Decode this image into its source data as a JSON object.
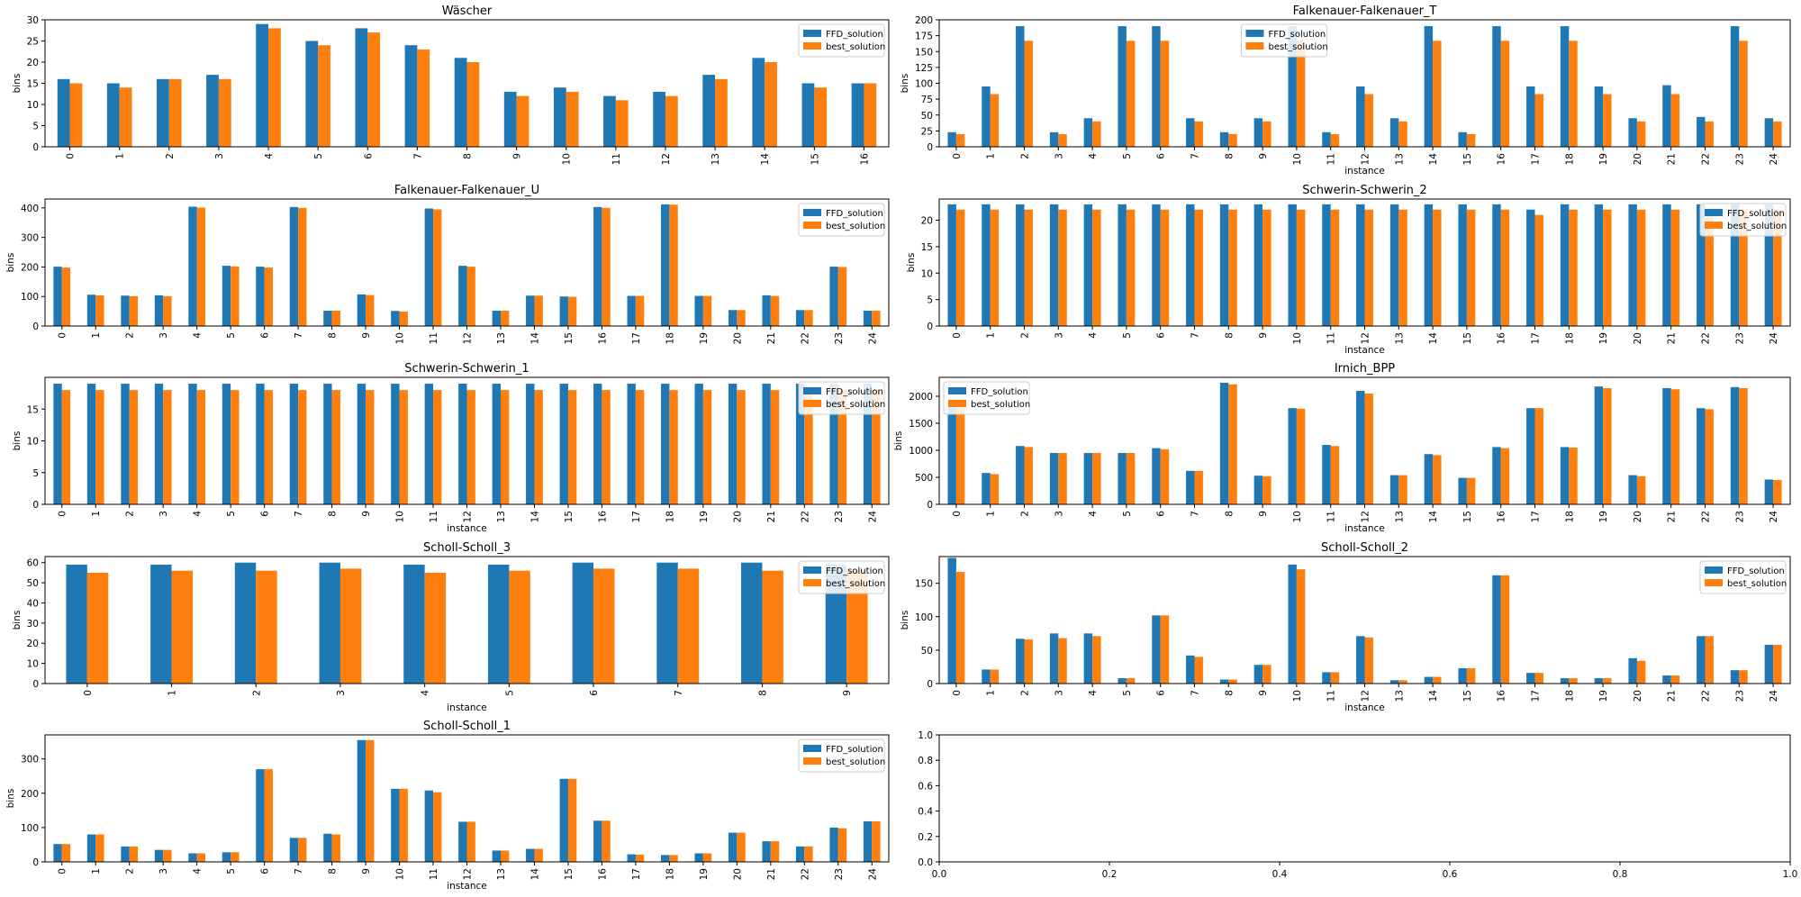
{
  "colors": {
    "ffd": "#1f77b4",
    "best": "#ff7f0e"
  },
  "chart_data": [
    {
      "type": "bar",
      "title": "Wäscher",
      "xlabel": "",
      "ylabel": "bins",
      "ylim": [
        0,
        30
      ],
      "yticks": [
        0,
        5,
        10,
        15,
        20,
        25,
        30
      ],
      "legend": "top-right",
      "categories": [
        "0",
        "1",
        "2",
        "3",
        "4",
        "5",
        "6",
        "7",
        "8",
        "9",
        "10",
        "11",
        "12",
        "13",
        "14",
        "15",
        "16"
      ],
      "series": [
        {
          "name": "FFD_solution",
          "values": [
            16,
            15,
            16,
            17,
            29,
            25,
            28,
            24,
            21,
            13,
            14,
            12,
            13,
            17,
            21,
            15,
            15
          ]
        },
        {
          "name": "best_solution",
          "values": [
            15,
            14,
            16,
            16,
            28,
            24,
            27,
            23,
            20,
            12,
            13,
            11,
            12,
            16,
            20,
            14,
            15
          ]
        }
      ]
    },
    {
      "type": "bar",
      "title": "Falkenauer-Falkenauer_T",
      "xlabel": "instance",
      "ylabel": "bins",
      "ylim": [
        0,
        200
      ],
      "yticks": [
        0,
        25,
        50,
        75,
        100,
        125,
        150,
        175,
        200
      ],
      "legend": "top-center",
      "categories": [
        "0",
        "1",
        "2",
        "3",
        "4",
        "5",
        "6",
        "7",
        "8",
        "9",
        "10",
        "11",
        "12",
        "13",
        "14",
        "15",
        "16",
        "17",
        "18",
        "19",
        "20",
        "21",
        "22",
        "23",
        "24"
      ],
      "series": [
        {
          "name": "FFD_solution",
          "values": [
            23,
            95,
            190,
            23,
            45,
            190,
            190,
            45,
            23,
            45,
            190,
            23,
            95,
            45,
            190,
            23,
            190,
            95,
            190,
            95,
            45,
            97,
            47,
            190,
            45
          ]
        },
        {
          "name": "best_solution",
          "values": [
            20,
            83,
            167,
            20,
            40,
            167,
            167,
            40,
            20,
            40,
            167,
            20,
            83,
            40,
            167,
            20,
            167,
            83,
            167,
            83,
            40,
            83,
            40,
            167,
            40
          ]
        }
      ]
    },
    {
      "type": "bar",
      "title": "Falkenauer-Falkenauer_U",
      "xlabel": "",
      "ylabel": "bins",
      "ylim": [
        0,
        430
      ],
      "yticks": [
        0,
        100,
        200,
        300,
        400
      ],
      "legend": "top-right",
      "categories": [
        "0",
        "1",
        "2",
        "3",
        "4",
        "5",
        "6",
        "7",
        "8",
        "9",
        "10",
        "11",
        "12",
        "13",
        "14",
        "15",
        "16",
        "17",
        "18",
        "19",
        "20",
        "21",
        "22",
        "23",
        "24"
      ],
      "series": [
        {
          "name": "FFD_solution",
          "values": [
            201,
            106,
            103,
            104,
            404,
            204,
            201,
            403,
            52,
            107,
            51,
            398,
            204,
            52,
            103,
            100,
            403,
            102,
            412,
            102,
            54,
            104,
            54,
            201,
            52
          ]
        },
        {
          "name": "best_solution",
          "values": [
            198,
            104,
            101,
            101,
            401,
            202,
            198,
            400,
            52,
            105,
            49,
            395,
            201,
            52,
            103,
            99,
            400,
            102,
            411,
            102,
            54,
            102,
            54,
            200,
            52
          ]
        }
      ]
    },
    {
      "type": "bar",
      "title": "Schwerin-Schwerin_2",
      "xlabel": "instance",
      "ylabel": "bins",
      "ylim": [
        0,
        24
      ],
      "yticks": [
        0,
        5,
        10,
        15,
        20
      ],
      "legend": "top-right",
      "categories": [
        "0",
        "1",
        "2",
        "3",
        "4",
        "5",
        "6",
        "7",
        "8",
        "9",
        "10",
        "11",
        "12",
        "13",
        "14",
        "15",
        "16",
        "17",
        "18",
        "19",
        "20",
        "21",
        "22",
        "23",
        "24"
      ],
      "series": [
        {
          "name": "FFD_solution",
          "values": [
            23,
            23,
            23,
            23,
            23,
            23,
            23,
            23,
            23,
            23,
            23,
            23,
            23,
            23,
            23,
            23,
            23,
            22,
            23,
            23,
            23,
            23,
            23,
            23,
            23
          ]
        },
        {
          "name": "best_solution",
          "values": [
            22,
            22,
            22,
            22,
            22,
            22,
            22,
            22,
            22,
            22,
            22,
            22,
            22,
            22,
            22,
            22,
            22,
            21,
            22,
            22,
            22,
            22,
            22,
            22,
            22
          ]
        }
      ]
    },
    {
      "type": "bar",
      "title": "Schwerin-Schwerin_1",
      "xlabel": "instance",
      "ylabel": "bins",
      "ylim": [
        0,
        20
      ],
      "yticks": [
        0,
        5,
        10,
        15
      ],
      "legend": "top-right",
      "categories": [
        "0",
        "1",
        "2",
        "3",
        "4",
        "5",
        "6",
        "7",
        "8",
        "9",
        "10",
        "11",
        "12",
        "13",
        "14",
        "15",
        "16",
        "17",
        "18",
        "19",
        "20",
        "21",
        "22",
        "23",
        "24"
      ],
      "series": [
        {
          "name": "FFD_solution",
          "values": [
            19,
            19,
            19,
            19,
            19,
            19,
            19,
            19,
            19,
            19,
            19,
            19,
            19,
            19,
            19,
            19,
            19,
            19,
            19,
            19,
            19,
            19,
            19,
            19,
            19
          ]
        },
        {
          "name": "best_solution",
          "values": [
            18,
            18,
            18,
            18,
            18,
            18,
            18,
            18,
            18,
            18,
            18,
            18,
            18,
            18,
            18,
            18,
            18,
            18,
            18,
            18,
            18,
            18,
            18,
            18,
            18
          ]
        }
      ]
    },
    {
      "type": "bar",
      "title": "Irnich_BPP",
      "xlabel": "instance",
      "ylabel": "bins",
      "ylim": [
        0,
        2350
      ],
      "yticks": [
        0,
        500,
        1000,
        1500,
        2000
      ],
      "legend": "top-left",
      "categories": [
        "0",
        "1",
        "2",
        "3",
        "4",
        "5",
        "6",
        "7",
        "8",
        "9",
        "10",
        "11",
        "12",
        "13",
        "14",
        "15",
        "16",
        "17",
        "18",
        "19",
        "20",
        "21",
        "22",
        "23",
        "24"
      ],
      "series": [
        {
          "name": "FFD_solution",
          "values": [
            1800,
            580,
            1080,
            950,
            950,
            950,
            1040,
            620,
            2250,
            530,
            1780,
            1100,
            2100,
            540,
            930,
            490,
            1060,
            1780,
            1060,
            2180,
            540,
            2150,
            1780,
            2170,
            460
          ]
        },
        {
          "name": "best_solution",
          "values": [
            1780,
            560,
            1060,
            950,
            950,
            950,
            1020,
            620,
            2220,
            520,
            1770,
            1080,
            2050,
            540,
            910,
            490,
            1040,
            1780,
            1050,
            2150,
            520,
            2130,
            1760,
            2150,
            450
          ]
        }
      ]
    },
    {
      "type": "bar",
      "title": "Scholl-Scholl_3",
      "xlabel": "instance",
      "ylabel": "bins",
      "ylim": [
        0,
        63
      ],
      "yticks": [
        0,
        10,
        20,
        30,
        40,
        50,
        60
      ],
      "legend": "top-right",
      "categories": [
        "0",
        "1",
        "2",
        "3",
        "4",
        "5",
        "6",
        "7",
        "8",
        "9"
      ],
      "series": [
        {
          "name": "FFD_solution",
          "values": [
            59,
            59,
            60,
            60,
            59,
            59,
            60,
            60,
            60,
            59
          ]
        },
        {
          "name": "best_solution",
          "values": [
            55,
            56,
            56,
            57,
            55,
            56,
            57,
            57,
            56,
            56
          ]
        }
      ]
    },
    {
      "type": "bar",
      "title": "Scholl-Scholl_2",
      "xlabel": "instance",
      "ylabel": "bins",
      "ylim": [
        0,
        190
      ],
      "yticks": [
        0,
        50,
        100,
        150
      ],
      "legend": "top-right",
      "categories": [
        "0",
        "1",
        "2",
        "3",
        "4",
        "5",
        "6",
        "7",
        "8",
        "9",
        "10",
        "11",
        "12",
        "13",
        "14",
        "15",
        "16",
        "17",
        "18",
        "19",
        "20",
        "21",
        "22",
        "23",
        "24"
      ],
      "series": [
        {
          "name": "FFD_solution",
          "values": [
            188,
            21,
            67,
            75,
            75,
            8,
            102,
            42,
            6,
            28,
            178,
            17,
            71,
            5,
            10,
            23,
            162,
            16,
            8,
            8,
            38,
            12,
            71,
            20,
            58
          ]
        },
        {
          "name": "best_solution",
          "values": [
            167,
            21,
            66,
            68,
            71,
            8,
            102,
            40,
            6,
            28,
            171,
            17,
            69,
            5,
            10,
            23,
            162,
            16,
            8,
            8,
            34,
            12,
            71,
            20,
            58
          ]
        }
      ]
    },
    {
      "type": "bar",
      "title": "Scholl-Scholl_1",
      "xlabel": "instance",
      "ylabel": "bins",
      "ylim": [
        0,
        370
      ],
      "yticks": [
        0,
        100,
        200,
        300
      ],
      "legend": "top-right",
      "categories": [
        "0",
        "1",
        "2",
        "3",
        "4",
        "5",
        "6",
        "7",
        "8",
        "9",
        "10",
        "11",
        "12",
        "13",
        "14",
        "15",
        "16",
        "17",
        "18",
        "19",
        "20",
        "21",
        "22",
        "23",
        "24"
      ],
      "series": [
        {
          "name": "FFD_solution",
          "values": [
            52,
            80,
            45,
            35,
            25,
            28,
            270,
            70,
            82,
            355,
            213,
            208,
            117,
            33,
            38,
            242,
            120,
            22,
            20,
            25,
            85,
            60,
            45,
            100,
            118
          ]
        },
        {
          "name": "best_solution",
          "values": [
            52,
            80,
            45,
            35,
            25,
            28,
            270,
            70,
            80,
            355,
            213,
            203,
            117,
            33,
            38,
            242,
            120,
            21,
            20,
            25,
            85,
            60,
            45,
            98,
            118
          ]
        }
      ]
    },
    {
      "type": "bar",
      "title": "",
      "xlabel": "",
      "ylabel": "",
      "xlim": [
        0,
        1
      ],
      "ylim": [
        0,
        1
      ],
      "xticks": [
        "0.0",
        "0.2",
        "0.4",
        "0.6",
        "0.8",
        "1.0"
      ],
      "yticks": [
        "0.0",
        "0.2",
        "0.4",
        "0.6",
        "0.8",
        "1.0"
      ],
      "categories": [],
      "series": []
    }
  ]
}
